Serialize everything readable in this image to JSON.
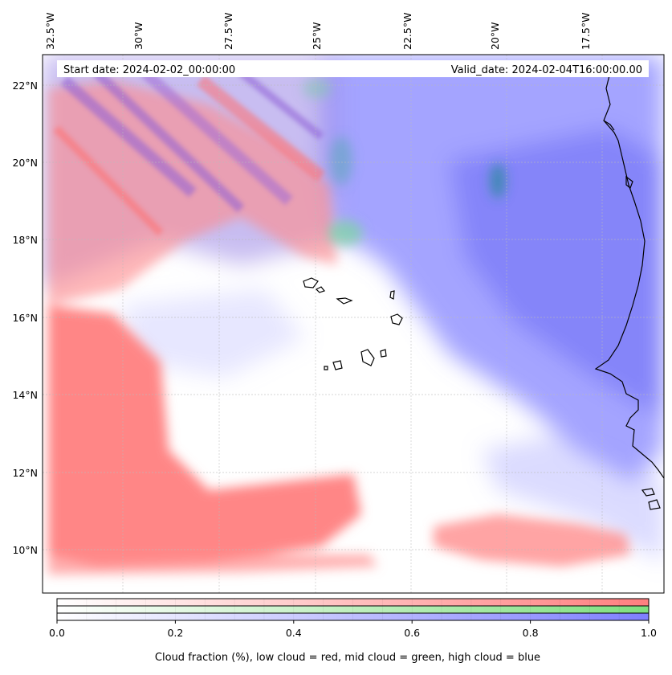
{
  "map": {
    "start_date": "Start date: 2024-02-02_00:00:00",
    "valid_date": "Valid_date: 2024-02-04T16:00:00.00",
    "lon_ticks": [
      "32.5°W",
      "30°W",
      "27.5°W",
      "25°W",
      "22.5°W",
      "20°W",
      "17.5°W"
    ],
    "lat_ticks": [
      "22°N",
      "20°N",
      "18°N",
      "16°N",
      "14°N",
      "12°N",
      "10°N"
    ],
    "colors": {
      "low_cloud": "#ff7a7a",
      "mid_cloud": "#7be07b",
      "high_cloud": "#7a7aff",
      "coastline": "#000000",
      "gridline": "#bbbbbb"
    }
  },
  "colorbar": {
    "ticks": [
      "0.0",
      "0.2",
      "0.4",
      "0.6",
      "0.8",
      "1.0"
    ],
    "caption": "Cloud fraction (%), low cloud = red, mid cloud = green, high cloud = blue",
    "bars": [
      {
        "name": "low cloud",
        "color": "#ff7f7f"
      },
      {
        "name": "mid cloud",
        "color": "#8ee88e"
      },
      {
        "name": "high cloud",
        "color": "#8080ff"
      }
    ]
  }
}
